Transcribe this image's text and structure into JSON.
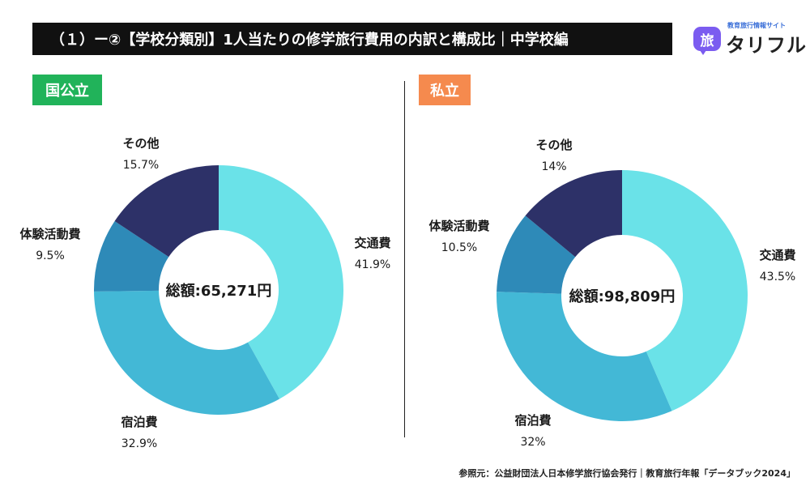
{
  "header": {
    "title": "（１）ー②【学校分類別】1人当たりの修学旅行費用の内訳と構成比｜中学校編"
  },
  "logo": {
    "mark": "旅",
    "subtitle": "教育旅行情報サイト",
    "name": "タリフル"
  },
  "colors": {
    "交通費": "#6ae2e8",
    "宿泊費": "#43b8d6",
    "体験活動費": "#2e8ab8",
    "その他": "#2d3168"
  },
  "chart_data": [
    {
      "type": "pie",
      "variant": "donut",
      "badge": "国公立",
      "total_label": "総額:65,271円",
      "categories": [
        "交通費",
        "宿泊費",
        "体験活動費",
        "その他"
      ],
      "values": [
        41.9,
        32.9,
        9.5,
        15.7
      ],
      "value_labels": [
        "41.9%",
        "32.9%",
        "9.5%",
        "15.7%"
      ]
    },
    {
      "type": "pie",
      "variant": "donut",
      "badge": "私立",
      "total_label": "総額:98,809円",
      "categories": [
        "交通費",
        "宿泊費",
        "体験活動費",
        "その他"
      ],
      "values": [
        43.5,
        32,
        10.5,
        14
      ],
      "value_labels": [
        "43.5%",
        "32%",
        "10.5%",
        "14%"
      ]
    }
  ],
  "source": "参照元：公益財団法人日本修学旅行協会発行｜教育旅行年報「データブック2024」"
}
